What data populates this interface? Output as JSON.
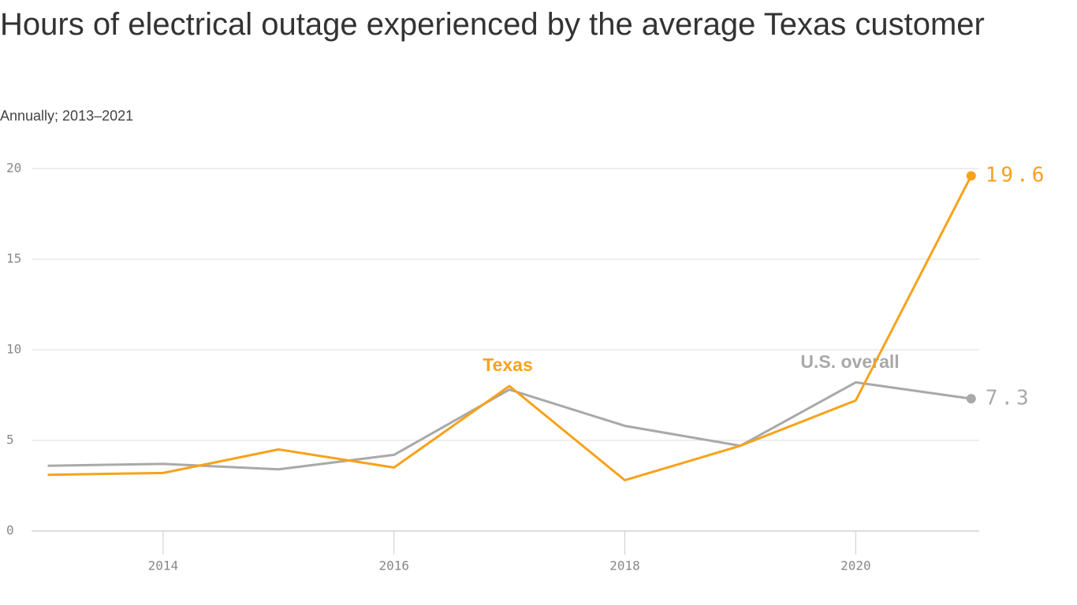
{
  "chart_data": {
    "type": "line",
    "title": "Hours of electrical outage experienced by the average Texas customer",
    "subtitle": "Annually; 2013–2021",
    "x": [
      2013,
      2014,
      2015,
      2016,
      2017,
      2018,
      2019,
      2020,
      2021
    ],
    "series": [
      {
        "name": "U.S. overall",
        "color": "#a9a9a9",
        "values": [
          3.6,
          3.7,
          3.4,
          4.2,
          7.8,
          5.8,
          4.7,
          8.2,
          7.3
        ]
      },
      {
        "name": "Texas",
        "color": "#f7a21b",
        "values": [
          3.1,
          3.2,
          4.5,
          3.5,
          8.0,
          2.8,
          4.7,
          7.2,
          19.6
        ]
      }
    ],
    "xlim": [
      2012.86,
      2021.07
    ],
    "xticks": [
      2014,
      2016,
      2018,
      2020
    ],
    "ylim": [
      0,
      20
    ],
    "yticks": [
      0,
      5,
      10,
      15,
      20
    ],
    "grid": true
  }
}
